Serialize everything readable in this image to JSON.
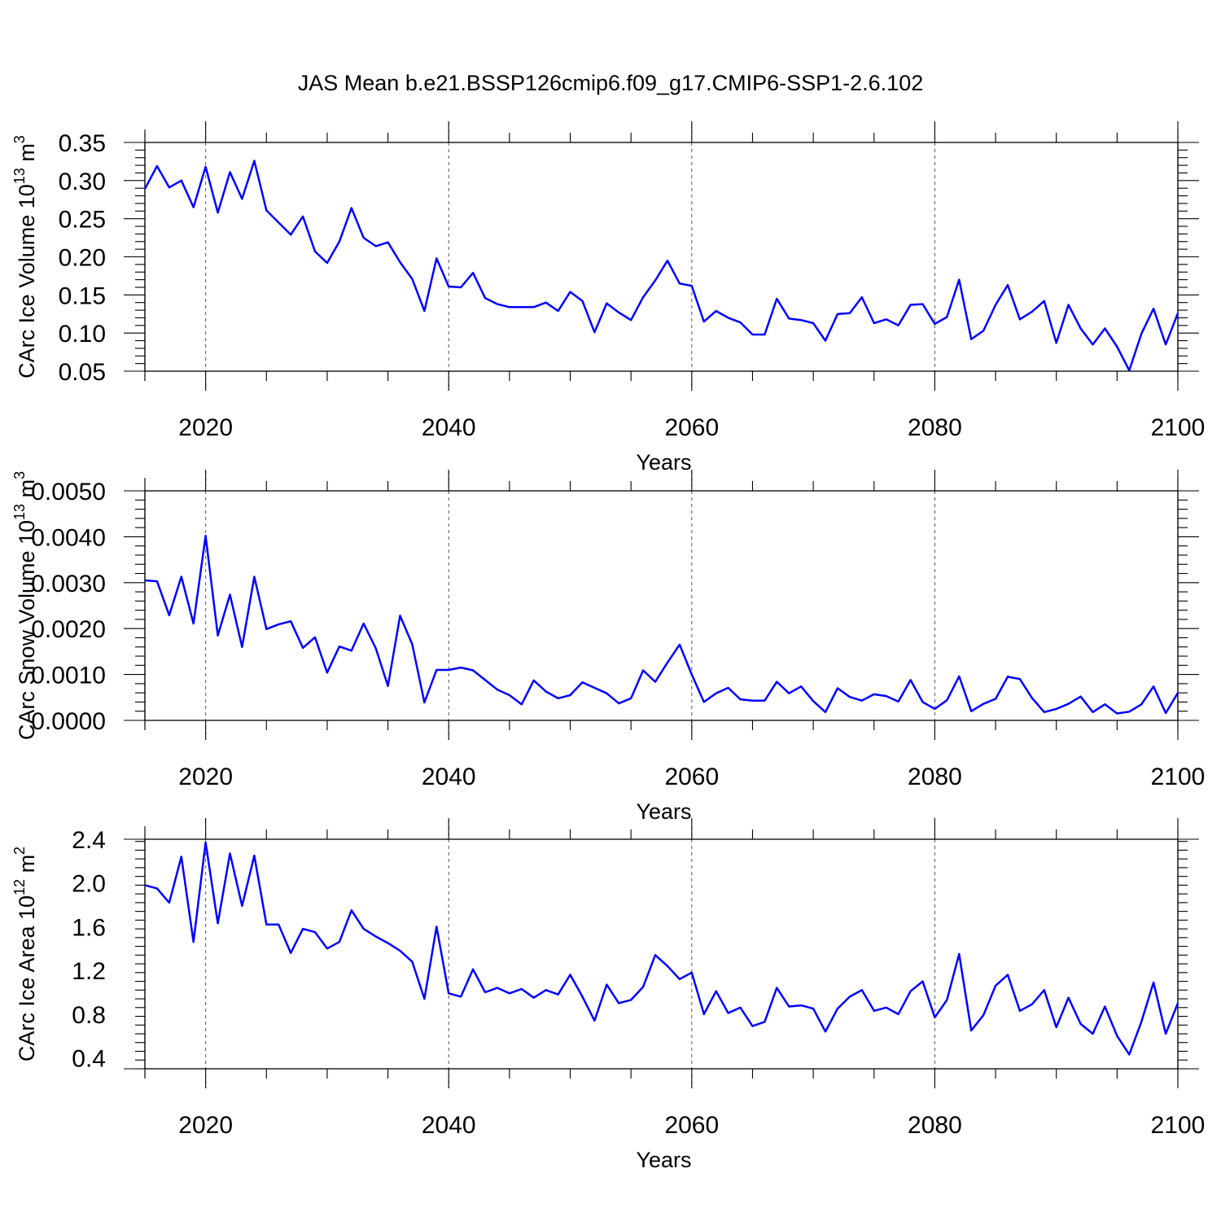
{
  "title": "JAS Mean b.e21.BSSP126cmip6.f09_g17.CMIP6-SSP1-2.6.102",
  "colors": {
    "line": "#0000ff",
    "axis": "#000000",
    "grid": "#555555"
  },
  "chart_data": [
    {
      "type": "line",
      "ylabel": "CArc Ice Volume 10",
      "ylabel_sup": "13",
      "ylabel_unit": " m",
      "ylabel_unit_sup": "3",
      "xlabel": "Years",
      "xlim": [
        2015,
        2100
      ],
      "ylim": [
        0.05,
        0.35
      ],
      "ytick_values": [
        0.05,
        0.1,
        0.15,
        0.2,
        0.25,
        0.3,
        0.35
      ],
      "ytick_labels": [
        "0.05",
        "0.10",
        "0.15",
        "0.20",
        "0.25",
        "0.30",
        "0.35"
      ],
      "xtick_values": [
        2020,
        2040,
        2060,
        2080,
        2100
      ],
      "xtick_labels": [
        "2020",
        "2040",
        "2060",
        "2080",
        "2100"
      ],
      "grid": "vertical dashed at major x ticks",
      "series": [
        {
          "x_start": 2015,
          "values": [
            0.289,
            0.319,
            0.291,
            0.3,
            0.265,
            0.318,
            0.258,
            0.311,
            0.276,
            0.326,
            0.261,
            0.245,
            0.229,
            0.253,
            0.207,
            0.192,
            0.22,
            0.264,
            0.225,
            0.214,
            0.219,
            0.193,
            0.171,
            0.129,
            0.198,
            0.161,
            0.16,
            0.179,
            0.146,
            0.138,
            0.134,
            0.134,
            0.134,
            0.14,
            0.129,
            0.154,
            0.142,
            0.101,
            0.139,
            0.127,
            0.117,
            0.147,
            0.169,
            0.195,
            0.165,
            0.162,
            0.115,
            0.129,
            0.12,
            0.114,
            0.098,
            0.098,
            0.145,
            0.119,
            0.117,
            0.113,
            0.09,
            0.125,
            0.126,
            0.147,
            0.113,
            0.118,
            0.11,
            0.137,
            0.138,
            0.112,
            0.121,
            0.17,
            0.092,
            0.103,
            0.137,
            0.163,
            0.118,
            0.128,
            0.142,
            0.087,
            0.137,
            0.106,
            0.085,
            0.106,
            0.082,
            0.051,
            0.099,
            0.132,
            0.085,
            0.126
          ]
        }
      ]
    },
    {
      "type": "line",
      "ylabel": "CArc Snow Volume 10",
      "ylabel_sup": "13",
      "ylabel_unit": " m",
      "ylabel_unit_sup": "3",
      "xlabel": "Years",
      "xlim": [
        2015,
        2100
      ],
      "ylim": [
        0.0,
        0.005
      ],
      "ytick_values": [
        0.0,
        0.001,
        0.002,
        0.003,
        0.004,
        0.005
      ],
      "ytick_labels": [
        "0.0000",
        "0.0010",
        "0.0020",
        "0.0030",
        "0.0040",
        "0.0050"
      ],
      "xtick_values": [
        2020,
        2040,
        2060,
        2080,
        2100
      ],
      "xtick_labels": [
        "2020",
        "2040",
        "2060",
        "2080",
        "2100"
      ],
      "grid": "vertical dashed at major x ticks",
      "series": [
        {
          "x_start": 2015,
          "values": [
            0.00305,
            0.00303,
            0.00229,
            0.00313,
            0.00211,
            0.00402,
            0.00185,
            0.00274,
            0.0016,
            0.00313,
            0.00199,
            0.00209,
            0.00216,
            0.00158,
            0.00181,
            0.00104,
            0.00161,
            0.00152,
            0.00211,
            0.00157,
            0.00075,
            0.00228,
            0.00166,
            0.00039,
            0.0011,
            0.0011,
            0.00115,
            0.00109,
            0.00088,
            0.00067,
            0.00055,
            0.00035,
            0.00087,
            0.00063,
            0.00048,
            0.00055,
            0.00083,
            0.00071,
            0.00059,
            0.00037,
            0.00048,
            0.00109,
            0.00084,
            0.00126,
            0.00165,
            0.001,
            0.0004,
            0.00059,
            0.00071,
            0.00046,
            0.00043,
            0.00043,
            0.00084,
            0.00059,
            0.00074,
            0.00042,
            0.00018,
            0.0007,
            0.00051,
            0.00043,
            0.00057,
            0.00053,
            0.00041,
            0.00088,
            0.0004,
            0.00025,
            0.00044,
            0.00096,
            0.0002,
            0.00036,
            0.00047,
            0.00095,
            0.0009,
            0.00049,
            0.00018,
            0.00025,
            0.00036,
            0.00052,
            0.00018,
            0.00035,
            0.00015,
            0.00019,
            0.00035,
            0.00074,
            0.00016,
            0.0006
          ]
        }
      ]
    },
    {
      "type": "line",
      "ylabel": "CArc Ice Area 10",
      "ylabel_sup": "12",
      "ylabel_unit": " m",
      "ylabel_unit_sup": "2",
      "xlabel": "Years",
      "xlim": [
        2015,
        2100
      ],
      "ylim": [
        0.3,
        2.4
      ],
      "ytick_values": [
        0.4,
        0.8,
        1.2,
        1.6,
        2.0,
        2.4
      ],
      "ytick_labels": [
        "0.4",
        "0.8",
        "1.2",
        "1.6",
        "2.0",
        "2.4"
      ],
      "xtick_values": [
        2020,
        2040,
        2060,
        2080,
        2100
      ],
      "xtick_labels": [
        "2020",
        "2040",
        "2060",
        "2080",
        "2100"
      ],
      "grid": "vertical dashed at major x ticks",
      "series": [
        {
          "x_start": 2015,
          "values": [
            1.98,
            1.95,
            1.82,
            2.24,
            1.46,
            2.37,
            1.63,
            2.27,
            1.79,
            2.25,
            1.62,
            1.62,
            1.36,
            1.58,
            1.55,
            1.4,
            1.46,
            1.75,
            1.58,
            1.51,
            1.45,
            1.38,
            1.28,
            0.94,
            1.6,
            0.99,
            0.96,
            1.21,
            1.0,
            1.04,
            0.99,
            1.03,
            0.95,
            1.02,
            0.98,
            1.16,
            0.96,
            0.74,
            1.07,
            0.9,
            0.93,
            1.05,
            1.34,
            1.24,
            1.12,
            1.18,
            0.8,
            1.01,
            0.81,
            0.86,
            0.69,
            0.73,
            1.04,
            0.87,
            0.88,
            0.85,
            0.64,
            0.85,
            0.96,
            1.02,
            0.83,
            0.86,
            0.8,
            1.01,
            1.1,
            0.77,
            0.93,
            1.35,
            0.65,
            0.79,
            1.06,
            1.16,
            0.83,
            0.89,
            1.02,
            0.68,
            0.95,
            0.71,
            0.62,
            0.87,
            0.6,
            0.43,
            0.73,
            1.09,
            0.62,
            0.9
          ]
        }
      ]
    }
  ]
}
